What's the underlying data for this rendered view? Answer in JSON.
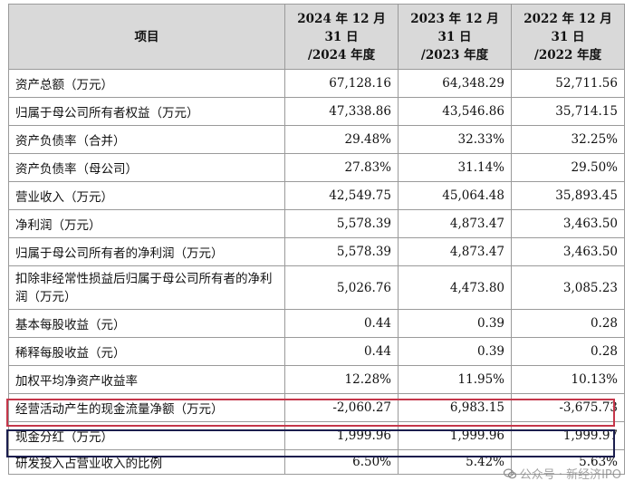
{
  "table": {
    "header": {
      "item": "项目",
      "col2024": [
        "2024 年 12 月",
        "31 日",
        "/2024 年度"
      ],
      "col2023": [
        "2023 年 12 月",
        "31 日",
        "/2023 年度"
      ],
      "col2022": [
        "2022 年 12 月",
        "31 日",
        "/2022 年度"
      ]
    },
    "rows": [
      {
        "label": "资产总额（万元）",
        "v2024": "67,128.16",
        "v2023": "64,348.29",
        "v2022": "52,711.56"
      },
      {
        "label": "归属于母公司所有者权益（万元）",
        "v2024": "47,338.86",
        "v2023": "43,546.86",
        "v2022": "35,714.15"
      },
      {
        "label": "资产负债率（合并）",
        "v2024": "29.48%",
        "v2023": "32.33%",
        "v2022": "32.25%"
      },
      {
        "label": "资产负债率（母公司）",
        "v2024": "27.83%",
        "v2023": "31.14%",
        "v2022": "29.50%"
      },
      {
        "label": "营业收入（万元）",
        "v2024": "42,549.75",
        "v2023": "45,064.48",
        "v2022": "35,893.45"
      },
      {
        "label": "净利润（万元）",
        "v2024": "5,578.39",
        "v2023": "4,873.47",
        "v2022": "3,463.50"
      },
      {
        "label": "归属于母公司所有者的净利润（万元）",
        "v2024": "5,578.39",
        "v2023": "4,873.47",
        "v2022": "3,463.50"
      },
      {
        "label": "扣除非经常性损益后归属于母公司所有者的净利润（万元）",
        "v2024": "5,026.76",
        "v2023": "4,473.80",
        "v2022": "3,085.23"
      },
      {
        "label": "基本每股收益（元）",
        "v2024": "0.44",
        "v2023": "0.39",
        "v2022": "0.28"
      },
      {
        "label": "稀释每股收益（元）",
        "v2024": "0.44",
        "v2023": "0.39",
        "v2022": "0.28"
      },
      {
        "label": "加权平均净资产收益率",
        "v2024": "12.28%",
        "v2023": "11.95%",
        "v2022": "10.13%"
      },
      {
        "label": "经营活动产生的现金流量净额（万元）",
        "v2024": "-2,060.27",
        "v2023": "6,983.15",
        "v2022": "-3,675.73"
      },
      {
        "label": "现金分红（万元）",
        "v2024": "1,999.96",
        "v2023": "1,999.96",
        "v2022": "1,999.97"
      },
      {
        "label": "研发投入占营业收入的比例",
        "v2024": "6.50%",
        "v2023": "5.42%",
        "v2022": "5.63%"
      }
    ]
  },
  "highlights": {
    "red": "#c5364a",
    "navy": "#1b1e4e"
  },
  "watermark": {
    "text": "公众号 · 新经济IPO",
    "icon": "wechat-icon"
  }
}
